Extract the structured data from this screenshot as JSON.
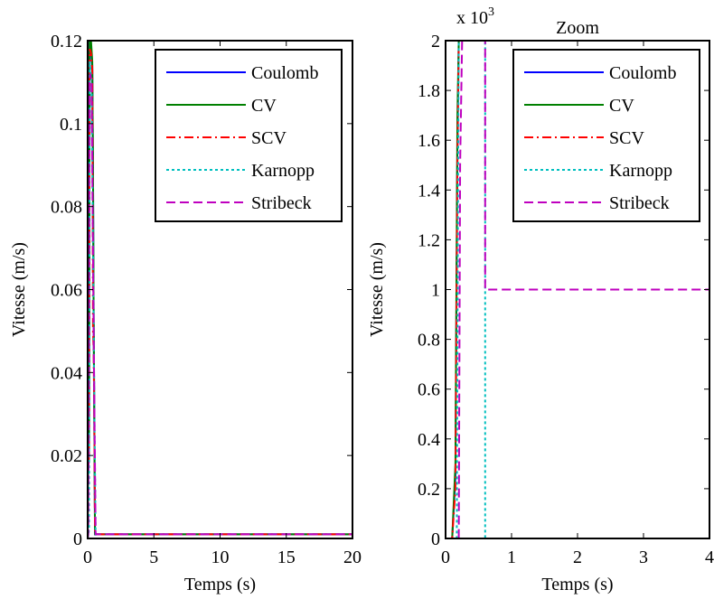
{
  "chart_data": [
    {
      "type": "line",
      "title": "",
      "xlabel": "Temps (s)",
      "ylabel": "Vitesse (m/s)",
      "xlim": [
        0,
        20
      ],
      "ylim": [
        0,
        0.12
      ],
      "x_ticks": [
        0,
        5,
        10,
        15,
        20
      ],
      "x_tick_labels": [
        "0",
        "5",
        "10",
        "15",
        "20"
      ],
      "y_ticks": [
        0,
        0.02,
        0.04,
        0.06,
        0.08,
        0.1,
        0.12
      ],
      "y_tick_labels": [
        "0",
        "0.02",
        "0.04",
        "0.06",
        "0.08",
        "0.1",
        "0.12"
      ],
      "grid": false,
      "legend_position": "top-right",
      "series": [
        {
          "name": "Coulomb",
          "color": "#0000ff",
          "dash": "solid",
          "x": [
            0,
            0.02,
            0.1,
            0.15,
            0.25,
            0.35,
            0.4,
            0.45,
            0.5,
            0.55,
            20
          ],
          "y": [
            0,
            0.015,
            0.02,
            0.12,
            0.118,
            0.114,
            0.09,
            0.055,
            0.03,
            0.001,
            0.001
          ]
        },
        {
          "name": "CV",
          "color": "#008000",
          "dash": "solid",
          "x": [
            0,
            0.02,
            0.1,
            0.15,
            0.25,
            0.35,
            0.4,
            0.45,
            0.5,
            0.55,
            20
          ],
          "y": [
            0,
            0.017,
            0.022,
            0.12,
            0.12,
            0.115,
            0.09,
            0.054,
            0.03,
            0.001,
            0.001
          ]
        },
        {
          "name": "SCV",
          "color": "#ff0000",
          "dash": "dashdot",
          "x": [
            0,
            0.02,
            0.1,
            0.15,
            0.25,
            0.35,
            0.4,
            0.45,
            0.5,
            0.55,
            20
          ],
          "y": [
            0,
            0.015,
            0.02,
            0.118,
            0.117,
            0.113,
            0.05,
            0.045,
            0.03,
            0.001,
            0.001
          ]
        },
        {
          "name": "Karnopp",
          "color": "#00bfbf",
          "dash": "dotted",
          "x": [
            0,
            0.1,
            0.15,
            0.3,
            0.45,
            0.6,
            0.6,
            20
          ],
          "y": [
            0,
            0.002,
            0.115,
            0.11,
            0.05,
            0.001,
            0,
            0
          ]
        },
        {
          "name": "Stribeck",
          "color": "#bf00bf",
          "dash": "dashed",
          "x": [
            0,
            0.05,
            0.12,
            0.2,
            0.3,
            0.45,
            0.6,
            20
          ],
          "y": [
            0,
            0.001,
            0.11,
            0.112,
            0.11,
            0.05,
            0.001,
            0.001
          ]
        }
      ]
    },
    {
      "type": "line",
      "title": "Zoom",
      "xlabel": "Temps (s)",
      "ylabel": "Vitesse (m/s)",
      "y_exponent_label": "x 10",
      "y_exponent_power": "3",
      "xlim": [
        0,
        4
      ],
      "ylim": [
        0,
        2
      ],
      "x_ticks": [
        0,
        1,
        2,
        3,
        4
      ],
      "x_tick_labels": [
        "0",
        "1",
        "2",
        "3",
        "4"
      ],
      "y_ticks": [
        0,
        0.2,
        0.4,
        0.6,
        0.8,
        1,
        1.2,
        1.4,
        1.6,
        1.8,
        2
      ],
      "y_tick_labels": [
        "0",
        "0.2",
        "0.4",
        "0.6",
        "0.8",
        "1",
        "1.2",
        "1.4",
        "1.6",
        "1.8",
        "2"
      ],
      "grid": false,
      "legend_position": "top-right",
      "series": [
        {
          "name": "Coulomb",
          "color": "#0000ff",
          "dash": "solid",
          "x": [
            0,
            0.1,
            0.15,
            0.18,
            0.2,
            0.23,
            0.25
          ],
          "y": [
            0,
            0,
            0.25,
            1.6,
            2.05,
            2.05,
            2.05
          ]
        },
        {
          "name": "CV",
          "color": "#008000",
          "dash": "solid",
          "x": [
            0,
            0.1,
            0.15,
            0.18,
            0.2,
            0.23,
            0.25
          ],
          "y": [
            0,
            0,
            0.3,
            1.7,
            2.05,
            2.05,
            2.05
          ]
        },
        {
          "name": "SCV",
          "color": "#ff0000",
          "dash": "dashdot",
          "x": [
            0,
            0.1,
            0.15,
            0.18,
            0.2,
            0.23,
            0.25
          ],
          "y": [
            0,
            0,
            0.2,
            1.5,
            2.05,
            2.05,
            2.05
          ]
        },
        {
          "name": "Karnopp",
          "color": "#00bfbf",
          "dash": "dotted",
          "x": [
            0,
            0.17,
            0.19,
            0.2,
            0.6,
            0.6,
            4
          ],
          "y": [
            0,
            0,
            1.5,
            2.05,
            2.05,
            0,
            0
          ]
        },
        {
          "name": "Stribeck",
          "color": "#bf00bf",
          "dash": "dashed",
          "x": [
            0,
            0.2,
            0.22,
            0.25,
            0.6,
            0.6,
            4
          ],
          "y": [
            0,
            0,
            1.5,
            2.05,
            2.05,
            1,
            1
          ]
        }
      ]
    }
  ]
}
